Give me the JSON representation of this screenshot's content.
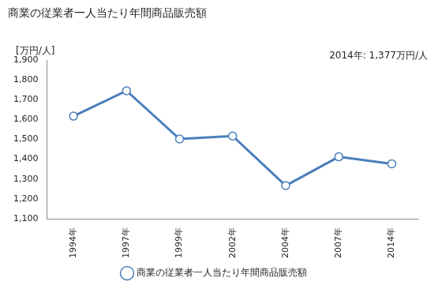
{
  "chart_data": {
    "type": "line",
    "title": "商業の従業者一人当たり年間商品販売額",
    "y_label": "[万円/人]",
    "annotation": "2014年: 1,377万円/人",
    "categories": [
      "1994年",
      "1997年",
      "1999年",
      "2002年",
      "2004年",
      "2007年",
      "2014年"
    ],
    "series": [
      {
        "name": "商業の従業者一人当たり年間商品販売額",
        "color": "#4a7ebb",
        "marker": "circle",
        "values": [
          1617,
          1745,
          1502,
          1517,
          1267,
          1412,
          1377
        ]
      }
    ],
    "ylim": [
      1100,
      1900
    ],
    "yticks": [
      {
        "value": 1100,
        "label": "1,100"
      },
      {
        "value": 1200,
        "label": "1,200"
      },
      {
        "value": 1300,
        "label": "1,300"
      },
      {
        "value": 1400,
        "label": "1,400"
      },
      {
        "value": 1500,
        "label": "1,500"
      },
      {
        "value": 1600,
        "label": "1,600"
      },
      {
        "value": 1700,
        "label": "1,700"
      },
      {
        "value": 1800,
        "label": "1,800"
      },
      {
        "value": 1900,
        "label": "1,900"
      }
    ],
    "grid": false,
    "legend": "bottom"
  }
}
